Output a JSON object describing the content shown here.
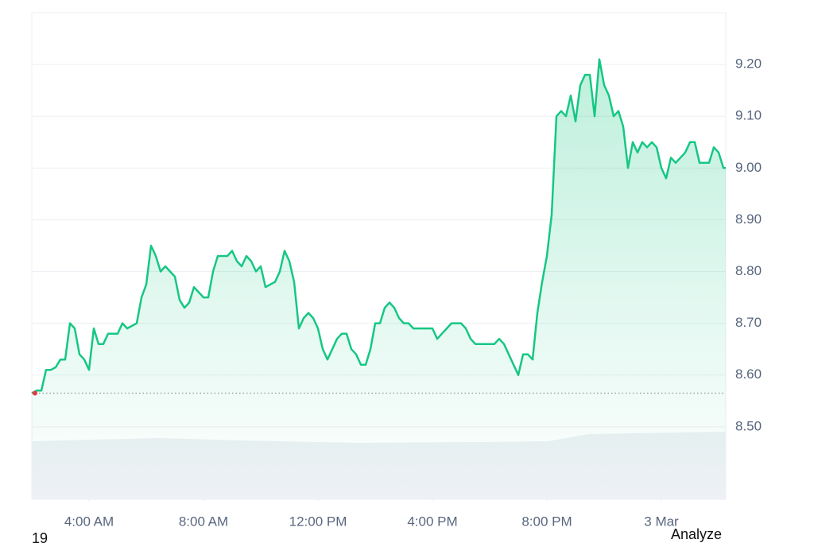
{
  "chart_data": {
    "type": "line",
    "x": [
      120,
      130,
      140,
      150,
      160,
      170,
      180,
      190,
      200,
      210,
      220,
      230,
      240,
      250,
      260,
      270,
      280,
      290,
      300,
      310,
      320,
      330,
      340,
      350,
      360,
      370,
      380,
      390,
      400,
      410,
      420,
      430,
      440,
      450,
      460,
      470,
      480,
      490,
      500,
      510,
      520,
      530,
      540,
      550,
      560,
      570,
      580,
      590,
      600,
      610,
      620,
      630,
      640,
      650,
      660,
      670,
      680,
      690,
      700,
      710,
      720,
      730,
      740,
      750,
      760,
      770,
      780,
      790,
      800,
      810,
      820,
      830,
      840,
      850,
      860,
      870,
      880,
      890,
      900,
      910,
      920,
      930,
      940,
      950,
      960,
      970,
      980,
      990,
      1000,
      1010,
      1020,
      1030,
      1040,
      1050,
      1060,
      1070,
      1080,
      1090,
      1100,
      1110,
      1120,
      1130,
      1140,
      1150,
      1160,
      1170,
      1180,
      1190,
      1200,
      1210,
      1220,
      1230,
      1240,
      1250,
      1260,
      1270,
      1280,
      1290,
      1300,
      1310,
      1320,
      1330,
      1340,
      1350,
      1360,
      1370,
      1380,
      1390,
      1400,
      1410,
      1420,
      1430,
      1440,
      1450,
      1460,
      1470,
      1480,
      1490,
      1500,
      1510,
      1520,
      1530,
      1540,
      1550,
      1560,
      1570,
      1575
    ],
    "series": [
      {
        "color": "#16c784",
        "values": [
          8.565,
          8.57,
          8.57,
          8.61,
          8.61,
          8.615,
          8.63,
          8.63,
          8.7,
          8.69,
          8.64,
          8.63,
          8.61,
          8.69,
          8.66,
          8.66,
          8.68,
          8.68,
          8.68,
          8.7,
          8.69,
          8.695,
          8.7,
          8.75,
          8.775,
          8.85,
          8.83,
          8.8,
          8.81,
          8.8,
          8.79,
          8.745,
          8.73,
          8.74,
          8.77,
          8.76,
          8.75,
          8.75,
          8.8,
          8.83,
          8.83,
          8.83,
          8.84,
          8.82,
          8.81,
          8.83,
          8.82,
          8.8,
          8.81,
          8.77,
          8.775,
          8.78,
          8.8,
          8.84,
          8.82,
          8.78,
          8.69,
          8.71,
          8.72,
          8.71,
          8.69,
          8.65,
          8.63,
          8.65,
          8.67,
          8.68,
          8.68,
          8.65,
          8.64,
          8.62,
          8.62,
          8.65,
          8.7,
          8.7,
          8.73,
          8.74,
          8.73,
          8.71,
          8.7,
          8.7,
          8.69,
          8.69,
          8.69,
          8.69,
          8.69,
          8.67,
          8.68,
          8.69,
          8.7,
          8.7,
          8.7,
          8.69,
          8.67,
          8.66,
          8.66,
          8.66,
          8.66,
          8.66,
          8.67,
          8.66,
          8.64,
          8.62,
          8.6,
          8.64,
          8.64,
          8.63,
          8.72,
          8.78,
          8.83,
          8.91,
          9.1,
          9.11,
          9.1,
          9.14,
          9.09,
          9.16,
          9.18,
          9.18,
          9.1,
          9.21,
          9.16,
          9.14,
          9.1,
          9.11,
          9.08,
          9.0,
          9.05,
          9.03,
          9.05,
          9.04,
          9.05,
          9.04,
          9.0,
          8.98,
          9.02,
          9.01,
          9.02,
          9.03,
          9.05,
          9.05,
          9.01,
          9.01,
          9.01,
          9.04,
          9.03,
          9.0,
          9.0
        ]
      }
    ],
    "baseline": 8.565,
    "xlim": [
      120,
      1575
    ],
    "xticks": [
      {
        "value": 240,
        "label": "4:00 AM"
      },
      {
        "value": 480,
        "label": "8:00 AM"
      },
      {
        "value": 720,
        "label": "12:00 PM"
      },
      {
        "value": 960,
        "label": "4:00 PM"
      },
      {
        "value": 1200,
        "label": "8:00 PM"
      },
      {
        "value": 1440,
        "label": "3 Mar"
      }
    ],
    "ylim": [
      8.36,
      9.3
    ],
    "yticks": [
      {
        "value": 8.5,
        "label": "8.50"
      },
      {
        "value": 8.6,
        "label": "8.60"
      },
      {
        "value": 8.7,
        "label": "8.70"
      },
      {
        "value": 8.8,
        "label": "8.80"
      },
      {
        "value": 8.9,
        "label": "8.90"
      },
      {
        "value": 9.0,
        "label": "9.00"
      },
      {
        "value": 9.1,
        "label": "9.10"
      },
      {
        "value": 9.2,
        "label": "9.20"
      }
    ],
    "grid": true,
    "footer_left": "19",
    "footer_right": "Analyze"
  }
}
